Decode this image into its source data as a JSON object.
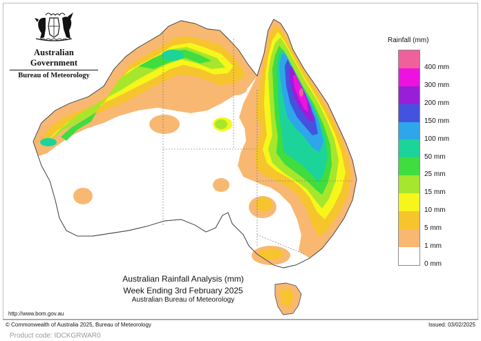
{
  "header": {
    "government": "Australian Government",
    "bureau": "Bureau of Meteorology"
  },
  "legend": {
    "title": "Rainfall (mm)",
    "levels": [
      {
        "label": "400 mm",
        "color": "#f0609a"
      },
      {
        "label": "300 mm",
        "color": "#ee12e0"
      },
      {
        "label": "200 mm",
        "color": "#9a1ed8"
      },
      {
        "label": "150 mm",
        "color": "#4452e0"
      },
      {
        "label": "100 mm",
        "color": "#2ea6ea"
      },
      {
        "label": "50 mm",
        "color": "#1cd49a"
      },
      {
        "label": "25 mm",
        "color": "#3fdd3f"
      },
      {
        "label": "15 mm",
        "color": "#a6e62c"
      },
      {
        "label": "10 mm",
        "color": "#f6f61a"
      },
      {
        "label": "5 mm",
        "color": "#f6c42c"
      },
      {
        "label": "1 mm",
        "color": "#f8b872"
      },
      {
        "label": "0 mm",
        "color": "#ffffff"
      }
    ]
  },
  "caption": {
    "line1": "Australian Rainfall Analysis (mm)",
    "line2": "Week Ending 3rd February 2025",
    "line3": "Australian Bureau of Meteorology"
  },
  "footer": {
    "url": "http://www.bom.gov.au",
    "copyright": "© Commonwealth of Australia 2025, Bureau of Meteorology",
    "issued": "Issued: 03/02/2025",
    "product_code": "Product code: IDCKGRWAR0"
  }
}
